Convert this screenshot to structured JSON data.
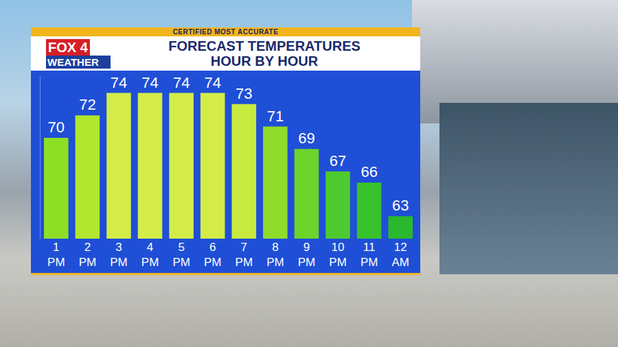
{
  "chart_data": {
    "type": "bar",
    "title": "FORECAST TEMPERATURES",
    "subtitle": "HOUR BY HOUR",
    "annotations": [
      "CERTIFIED MOST ACCURATE",
      "FOX 4",
      "WEATHER"
    ],
    "categories": [
      "1 PM",
      "2 PM",
      "3 PM",
      "4 PM",
      "5 PM",
      "6 PM",
      "7 PM",
      "8 PM",
      "9 PM",
      "10 PM",
      "11 PM",
      "12 AM"
    ],
    "values": [
      70,
      72,
      74,
      74,
      74,
      74,
      73,
      71,
      69,
      67,
      66,
      63
    ],
    "colors": [
      "#8fde26",
      "#b3e62e",
      "#d4ec48",
      "#d4ec48",
      "#d4ec48",
      "#d4ec48",
      "#c8ea3e",
      "#90dc2a",
      "#6cd42a",
      "#4fca2e",
      "#38c22c",
      "#2ab82c"
    ],
    "ylim": [
      61,
      75.5
    ],
    "data_labels": true,
    "tick_labels": "x",
    "grid": false
  }
}
